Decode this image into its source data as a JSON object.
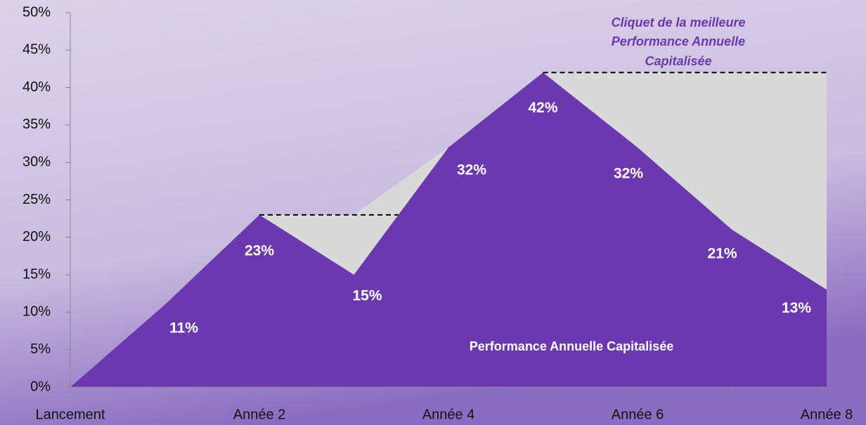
{
  "chart_data": {
    "type": "area",
    "categories": [
      "Lancement",
      null,
      "Année 2",
      null,
      "Année 4",
      null,
      "Année 6",
      null,
      "Année 8"
    ],
    "values": [
      0,
      11,
      23,
      15,
      32,
      42,
      32,
      21,
      13
    ],
    "value_labels": [
      null,
      "11%",
      "23%",
      "15%",
      "32%",
      "42%",
      "32%",
      "21%",
      "13%"
    ],
    "color": "#6b38b0",
    "ratchet_color": "#d9d9d9",
    "ylim": [
      0,
      50
    ],
    "yticks": [
      {
        "value": 0,
        "label": "0%"
      },
      {
        "value": 5,
        "label": "5%"
      },
      {
        "value": 10,
        "label": "10%"
      },
      {
        "value": 15,
        "label": "15%"
      },
      {
        "value": 20,
        "label": "20%"
      },
      {
        "value": 25,
        "label": "25%"
      },
      {
        "value": 30,
        "label": "30%"
      },
      {
        "value": 35,
        "label": "35%"
      },
      {
        "value": 40,
        "label": "40%"
      },
      {
        "value": 45,
        "label": "45%"
      },
      {
        "value": 50,
        "label": "50%"
      }
    ],
    "annotations": {
      "ratchet": [
        "Cliquet de la meilleure",
        "Performance Annuelle",
        "Capitalisée"
      ],
      "area": "Performance Annuelle Capitalisée"
    }
  }
}
